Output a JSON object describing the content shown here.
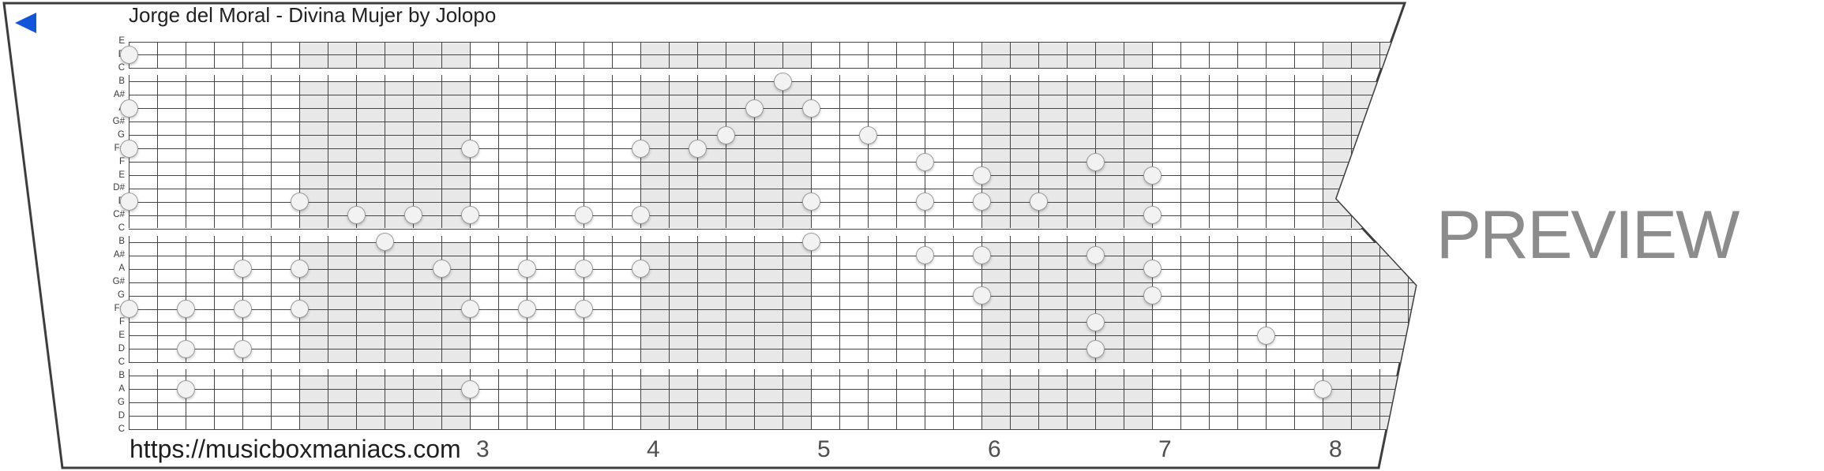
{
  "header": {
    "title": "Jorge del Moral - Divina Mujer by Jolopo",
    "back_icon": "back-arrow-icon"
  },
  "watermark": {
    "text": "PREVIEW"
  },
  "footer": {
    "url": "https://musicboxmaniacs.com"
  },
  "strip": {
    "row_labels": [
      "E",
      "D",
      "C",
      "B",
      "A#",
      "A",
      "G#",
      "G",
      "F#",
      "F",
      "E",
      "D#",
      "D",
      "C#",
      "C",
      "B",
      "A#",
      "A",
      "G#",
      "G",
      "F#",
      "F",
      "E",
      "D",
      "C",
      "B",
      "A",
      "G",
      "D",
      "C"
    ],
    "groups": [
      {
        "start": 0,
        "end": 2
      },
      {
        "start": 3,
        "end": 14
      },
      {
        "start": 15,
        "end": 24
      },
      {
        "start": 25,
        "end": 29
      }
    ],
    "columns_per_measure": 6,
    "measure_numbers": [
      {
        "label": "3",
        "column": 12
      },
      {
        "label": "4",
        "column": 18
      },
      {
        "label": "5",
        "column": 24
      },
      {
        "label": "6",
        "column": 30
      },
      {
        "label": "7",
        "column": 36
      },
      {
        "label": "8",
        "column": 42
      }
    ],
    "shaded_measures": [
      [
        6,
        12
      ],
      [
        18,
        24
      ],
      [
        30,
        36
      ],
      [
        42,
        48
      ]
    ]
  },
  "notes": [
    {
      "col": 0,
      "row": 1
    },
    {
      "col": 0,
      "row": 5
    },
    {
      "col": 0,
      "row": 8
    },
    {
      "col": 0,
      "row": 12
    },
    {
      "col": 0,
      "row": 20
    },
    {
      "col": 2,
      "row": 20
    },
    {
      "col": 2,
      "row": 23
    },
    {
      "col": 2,
      "row": 26
    },
    {
      "col": 4,
      "row": 17
    },
    {
      "col": 4,
      "row": 20
    },
    {
      "col": 4,
      "row": 23
    },
    {
      "col": 6,
      "row": 12
    },
    {
      "col": 6,
      "row": 17
    },
    {
      "col": 6,
      "row": 20
    },
    {
      "col": 8,
      "row": 13
    },
    {
      "col": 9,
      "row": 15
    },
    {
      "col": 10,
      "row": 13
    },
    {
      "col": 11,
      "row": 17
    },
    {
      "col": 12,
      "row": 8
    },
    {
      "col": 12,
      "row": 13
    },
    {
      "col": 12,
      "row": 20
    },
    {
      "col": 12,
      "row": 26
    },
    {
      "col": 14,
      "row": 17
    },
    {
      "col": 14,
      "row": 20
    },
    {
      "col": 16,
      "row": 13
    },
    {
      "col": 16,
      "row": 17
    },
    {
      "col": 16,
      "row": 20
    },
    {
      "col": 18,
      "row": 8
    },
    {
      "col": 18,
      "row": 13
    },
    {
      "col": 18,
      "row": 17
    },
    {
      "col": 20,
      "row": 8
    },
    {
      "col": 21,
      "row": 7
    },
    {
      "col": 22,
      "row": 5
    },
    {
      "col": 23,
      "row": 3
    },
    {
      "col": 24,
      "row": 5
    },
    {
      "col": 24,
      "row": 12
    },
    {
      "col": 24,
      "row": 15
    },
    {
      "col": 26,
      "row": 7
    },
    {
      "col": 28,
      "row": 9
    },
    {
      "col": 28,
      "row": 12
    },
    {
      "col": 28,
      "row": 16
    },
    {
      "col": 30,
      "row": 10
    },
    {
      "col": 30,
      "row": 12
    },
    {
      "col": 30,
      "row": 16
    },
    {
      "col": 30,
      "row": 19
    },
    {
      "col": 32,
      "row": 12
    },
    {
      "col": 34,
      "row": 9
    },
    {
      "col": 34,
      "row": 16
    },
    {
      "col": 34,
      "row": 21
    },
    {
      "col": 34,
      "row": 23
    },
    {
      "col": 36,
      "row": 10
    },
    {
      "col": 36,
      "row": 13
    },
    {
      "col": 36,
      "row": 17
    },
    {
      "col": 36,
      "row": 19
    },
    {
      "col": 40,
      "row": 22
    },
    {
      "col": 42,
      "row": 26
    }
  ],
  "colors": {
    "accent_blue": "#1155dd",
    "paper_border": "#3d3d3d",
    "grid_line": "#454545",
    "measure_shading": "#e8e8e8",
    "note_fill": "#f2f2f2",
    "note_stroke": "#9b9b9b",
    "watermark_gray": "#8c8c8c"
  }
}
